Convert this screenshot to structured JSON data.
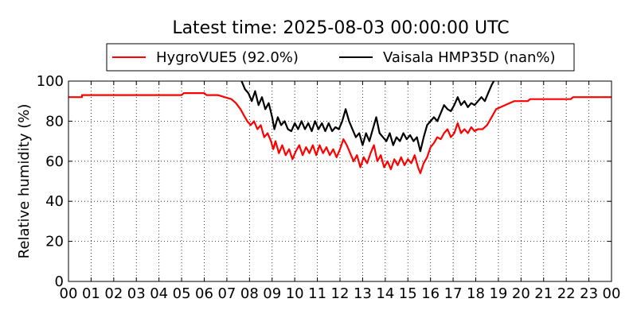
{
  "chart_data": {
    "type": "line",
    "title": "Latest time: 2025-08-03 00:00:00 UTC",
    "xlabel": "",
    "ylabel": "Relative humidity (%)",
    "xlim": [
      0,
      24
    ],
    "ylim": [
      0,
      100
    ],
    "x_ticks": [
      "00",
      "01",
      "02",
      "03",
      "04",
      "05",
      "06",
      "07",
      "08",
      "09",
      "10",
      "11",
      "12",
      "13",
      "14",
      "15",
      "16",
      "17",
      "18",
      "19",
      "20",
      "21",
      "22",
      "23",
      "00"
    ],
    "y_ticks": [
      0,
      20,
      40,
      60,
      80,
      100
    ],
    "grid": true,
    "legend_position": "top",
    "series": [
      {
        "name": "HygroVUE5 (92.0%)",
        "color": "#ff0000",
        "points": [
          [
            0,
            92
          ],
          [
            0.6,
            92
          ],
          [
            0.6,
            93
          ],
          [
            5,
            93
          ],
          [
            5.1,
            94
          ],
          [
            6,
            94
          ],
          [
            6.1,
            93
          ],
          [
            6.6,
            93
          ],
          [
            6.9,
            92
          ],
          [
            7.2,
            91
          ],
          [
            7.4,
            89
          ],
          [
            7.6,
            86
          ],
          [
            7.75,
            83
          ],
          [
            7.9,
            80
          ],
          [
            8.05,
            78
          ],
          [
            8.2,
            80
          ],
          [
            8.35,
            76
          ],
          [
            8.5,
            78
          ],
          [
            8.65,
            72
          ],
          [
            8.8,
            74
          ],
          [
            8.95,
            70
          ],
          [
            9.05,
            66
          ],
          [
            9.15,
            70
          ],
          [
            9.3,
            64
          ],
          [
            9.45,
            68
          ],
          [
            9.6,
            63
          ],
          [
            9.75,
            66
          ],
          [
            9.9,
            61
          ],
          [
            10.05,
            65
          ],
          [
            10.2,
            68
          ],
          [
            10.35,
            63
          ],
          [
            10.5,
            67
          ],
          [
            10.65,
            64
          ],
          [
            10.8,
            68
          ],
          [
            10.95,
            63
          ],
          [
            11.1,
            68
          ],
          [
            11.25,
            64
          ],
          [
            11.4,
            67
          ],
          [
            11.55,
            63
          ],
          [
            11.7,
            66
          ],
          [
            11.85,
            62
          ],
          [
            12,
            66
          ],
          [
            12.15,
            71
          ],
          [
            12.3,
            68
          ],
          [
            12.45,
            64
          ],
          [
            12.6,
            60
          ],
          [
            12.75,
            63
          ],
          [
            12.9,
            57
          ],
          [
            13.05,
            62
          ],
          [
            13.2,
            59
          ],
          [
            13.35,
            64
          ],
          [
            13.5,
            68
          ],
          [
            13.65,
            60
          ],
          [
            13.8,
            63
          ],
          [
            13.95,
            57
          ],
          [
            14.1,
            60
          ],
          [
            14.25,
            56
          ],
          [
            14.4,
            61
          ],
          [
            14.55,
            58
          ],
          [
            14.7,
            62
          ],
          [
            14.85,
            58
          ],
          [
            15,
            61
          ],
          [
            15.15,
            59
          ],
          [
            15.3,
            63
          ],
          [
            15.45,
            57
          ],
          [
            15.55,
            54
          ],
          [
            15.7,
            59
          ],
          [
            15.85,
            62
          ],
          [
            16,
            67
          ],
          [
            16.15,
            69
          ],
          [
            16.3,
            72
          ],
          [
            16.45,
            71
          ],
          [
            16.6,
            74
          ],
          [
            16.75,
            76
          ],
          [
            16.9,
            72
          ],
          [
            17.05,
            74
          ],
          [
            17.2,
            79
          ],
          [
            17.35,
            74
          ],
          [
            17.5,
            76
          ],
          [
            17.65,
            74
          ],
          [
            17.8,
            77
          ],
          [
            17.95,
            75
          ],
          [
            18.1,
            76
          ],
          [
            18.3,
            76
          ],
          [
            18.5,
            78
          ],
          [
            18.7,
            82
          ],
          [
            18.9,
            86
          ],
          [
            19.3,
            88
          ],
          [
            19.7,
            90
          ],
          [
            20.3,
            90
          ],
          [
            20.4,
            91
          ],
          [
            22.2,
            91
          ],
          [
            22.3,
            92
          ],
          [
            24,
            92
          ]
        ]
      },
      {
        "name": "Vaisala HMP35D (nan%)",
        "color": "#000000",
        "points": [
          [
            7.65,
            100
          ],
          [
            7.8,
            96
          ],
          [
            7.95,
            94
          ],
          [
            8.1,
            90
          ],
          [
            8.25,
            95
          ],
          [
            8.4,
            88
          ],
          [
            8.55,
            92
          ],
          [
            8.7,
            86
          ],
          [
            8.85,
            89
          ],
          [
            9,
            82
          ],
          [
            9.1,
            76
          ],
          [
            9.25,
            82
          ],
          [
            9.4,
            78
          ],
          [
            9.55,
            80
          ],
          [
            9.7,
            76
          ],
          [
            9.85,
            75
          ],
          [
            10,
            79
          ],
          [
            10.15,
            76
          ],
          [
            10.3,
            80
          ],
          [
            10.45,
            76
          ],
          [
            10.6,
            79
          ],
          [
            10.75,
            75
          ],
          [
            10.9,
            80
          ],
          [
            11.05,
            76
          ],
          [
            11.2,
            79
          ],
          [
            11.35,
            75
          ],
          [
            11.5,
            79
          ],
          [
            11.65,
            75
          ],
          [
            11.8,
            77
          ],
          [
            11.95,
            76
          ],
          [
            12.1,
            80
          ],
          [
            12.25,
            86
          ],
          [
            12.4,
            80
          ],
          [
            12.55,
            76
          ],
          [
            12.7,
            72
          ],
          [
            12.85,
            74
          ],
          [
            13,
            68
          ],
          [
            13.15,
            74
          ],
          [
            13.3,
            70
          ],
          [
            13.45,
            76
          ],
          [
            13.6,
            82
          ],
          [
            13.75,
            74
          ],
          [
            13.9,
            72
          ],
          [
            14.05,
            70
          ],
          [
            14.2,
            74
          ],
          [
            14.35,
            68
          ],
          [
            14.5,
            72
          ],
          [
            14.65,
            70
          ],
          [
            14.8,
            74
          ],
          [
            14.95,
            71
          ],
          [
            15.1,
            73
          ],
          [
            15.25,
            70
          ],
          [
            15.4,
            72
          ],
          [
            15.55,
            65
          ],
          [
            15.7,
            72
          ],
          [
            15.85,
            78
          ],
          [
            16,
            80
          ],
          [
            16.15,
            82
          ],
          [
            16.3,
            80
          ],
          [
            16.45,
            84
          ],
          [
            16.6,
            88
          ],
          [
            16.75,
            86
          ],
          [
            16.9,
            85
          ],
          [
            17.05,
            88
          ],
          [
            17.2,
            92
          ],
          [
            17.35,
            88
          ],
          [
            17.5,
            90
          ],
          [
            17.65,
            87
          ],
          [
            17.8,
            89
          ],
          [
            17.95,
            88
          ],
          [
            18.1,
            90
          ],
          [
            18.25,
            92
          ],
          [
            18.4,
            90
          ],
          [
            18.55,
            94
          ],
          [
            18.7,
            98
          ],
          [
            18.8,
            100
          ]
        ]
      }
    ]
  }
}
